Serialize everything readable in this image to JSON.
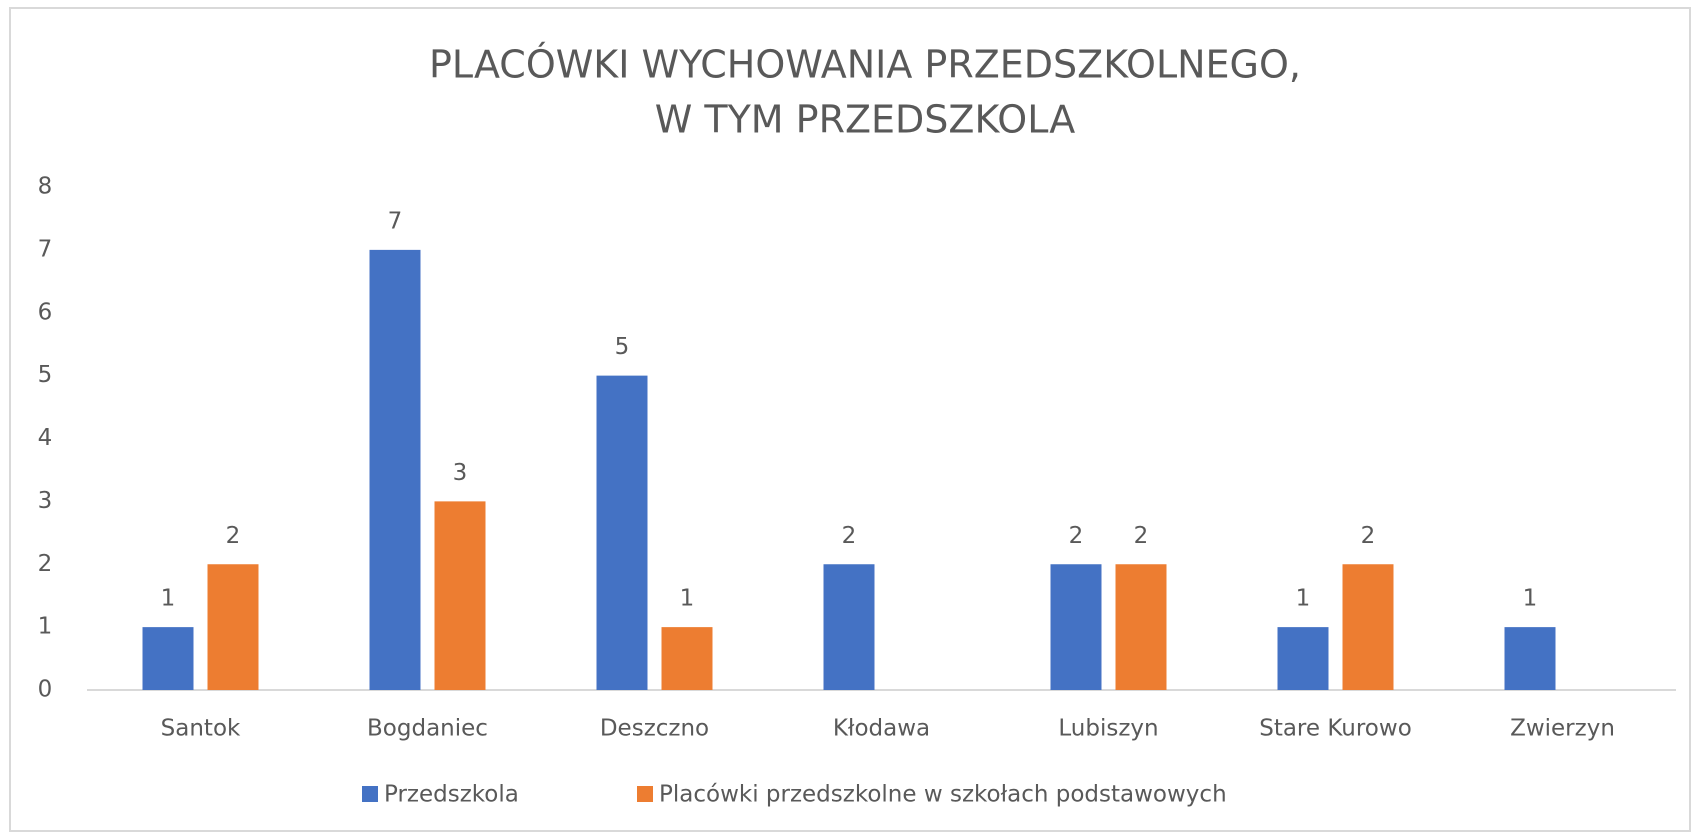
{
  "chart_data": {
    "type": "bar",
    "title": [
      "PLACÓWKI WYCHOWANIA PRZEDSZKOLNEGO,",
      "W TYM PRZEDSZKOLA"
    ],
    "categories": [
      "Santok",
      "Bogdaniec",
      "Deszczno",
      "Kłodawa",
      "Lubiszyn",
      "Stare Kurowo",
      "Zwierzyn"
    ],
    "series": [
      {
        "name": "Przedszkola",
        "color": "#4472c4",
        "values": [
          1,
          7,
          5,
          2,
          2,
          1,
          1
        ]
      },
      {
        "name": "Placówki przedszkolne w szkołach podstawowych",
        "color": "#ed7d31",
        "values": [
          2,
          3,
          1,
          null,
          2,
          2,
          null
        ]
      }
    ],
    "ylim": [
      0,
      8
    ],
    "yticks": [
      0,
      1,
      2,
      3,
      4,
      5,
      6,
      7,
      8
    ],
    "grid": false,
    "legend": "bottom"
  }
}
